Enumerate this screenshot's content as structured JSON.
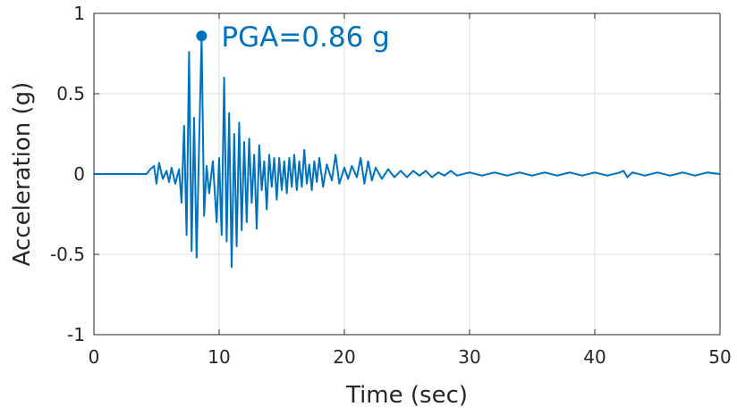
{
  "chart_data": {
    "type": "line",
    "title": "",
    "xlabel": "Time (sec)",
    "ylabel": "Acceleration (g)",
    "xlim": [
      0,
      50
    ],
    "ylim": [
      -1,
      1
    ],
    "xticks": [
      0,
      10,
      20,
      30,
      40,
      50
    ],
    "xtick_labels": [
      "0",
      "10",
      "20",
      "30",
      "40",
      "50"
    ],
    "yticks": [
      -1,
      -0.5,
      0,
      0.5,
      1
    ],
    "ytick_labels": [
      "-1",
      "-0.5",
      "0",
      "0.5",
      "1"
    ],
    "grid": true,
    "line_color": "#0072BD",
    "series": [
      {
        "name": "Acceleration",
        "x": [
          0,
          4.2,
          4.5,
          4.8,
          5.0,
          5.2,
          5.5,
          5.8,
          6.0,
          6.2,
          6.5,
          6.8,
          7.0,
          7.2,
          7.4,
          7.6,
          7.8,
          8.0,
          8.2,
          8.4,
          8.6,
          8.8,
          9.0,
          9.2,
          9.5,
          9.8,
          10.0,
          10.2,
          10.4,
          10.6,
          10.8,
          11.0,
          11.2,
          11.4,
          11.6,
          11.8,
          12.0,
          12.2,
          12.4,
          12.6,
          12.8,
          13.0,
          13.2,
          13.4,
          13.6,
          13.8,
          14.0,
          14.2,
          14.4,
          14.6,
          14.8,
          15.0,
          15.2,
          15.4,
          15.6,
          15.8,
          16.0,
          16.2,
          16.4,
          16.6,
          16.8,
          17.0,
          17.2,
          17.4,
          17.6,
          17.8,
          18.0,
          18.3,
          18.6,
          19.0,
          19.3,
          19.6,
          20.0,
          20.3,
          20.6,
          21.0,
          21.3,
          21.6,
          21.9,
          22.2,
          22.5,
          23.0,
          23.5,
          24.0,
          24.5,
          25.0,
          25.5,
          26.0,
          26.5,
          27.0,
          27.5,
          28.0,
          28.5,
          29.0,
          30.0,
          31.0,
          32.0,
          33.0,
          34.0,
          35.0,
          36.0,
          37.0,
          38.0,
          39.0,
          40.0,
          41.0,
          42.0,
          42.3,
          42.6,
          43.0,
          44.0,
          45.0,
          46.0,
          47.0,
          48.0,
          49.0,
          50.0
        ],
        "y": [
          0,
          0,
          0.03,
          0.05,
          -0.06,
          0.07,
          -0.03,
          0.02,
          -0.05,
          0.04,
          -0.06,
          0.03,
          -0.18,
          0.3,
          -0.38,
          0.76,
          -0.48,
          0.35,
          -0.52,
          0.18,
          0.86,
          -0.26,
          0.05,
          -0.12,
          0.08,
          -0.3,
          0.1,
          -0.38,
          0.6,
          -0.42,
          0.38,
          -0.58,
          0.25,
          -0.45,
          0.32,
          -0.35,
          0.2,
          -0.3,
          0.22,
          -0.18,
          0.12,
          -0.34,
          0.18,
          -0.1,
          0.08,
          -0.22,
          0.12,
          -0.08,
          0.1,
          -0.16,
          0.1,
          -0.1,
          0.08,
          -0.12,
          0.1,
          -0.08,
          0.12,
          -0.1,
          0.08,
          -0.08,
          0.15,
          -0.06,
          0.06,
          -0.1,
          0.08,
          -0.05,
          0.1,
          -0.08,
          0.06,
          -0.04,
          0.12,
          -0.06,
          0.04,
          -0.03,
          0.05,
          -0.02,
          0.1,
          -0.06,
          0.08,
          -0.04,
          0.04,
          -0.03,
          0.03,
          -0.02,
          0.02,
          -0.02,
          0.02,
          -0.01,
          0.02,
          -0.02,
          0.01,
          -0.01,
          0.02,
          -0.01,
          0.01,
          -0.01,
          0.01,
          -0.01,
          0.01,
          -0.01,
          0.01,
          -0.01,
          0.01,
          -0.01,
          0.01,
          -0.01,
          0.01,
          0.02,
          -0.02,
          0.01,
          -0.01,
          0.01,
          -0.01,
          0.01,
          -0.01,
          0.01,
          0
        ]
      }
    ],
    "annotations": [
      {
        "text": "PGA=0.86 g",
        "x": 8.6,
        "y": 0.86
      }
    ]
  }
}
